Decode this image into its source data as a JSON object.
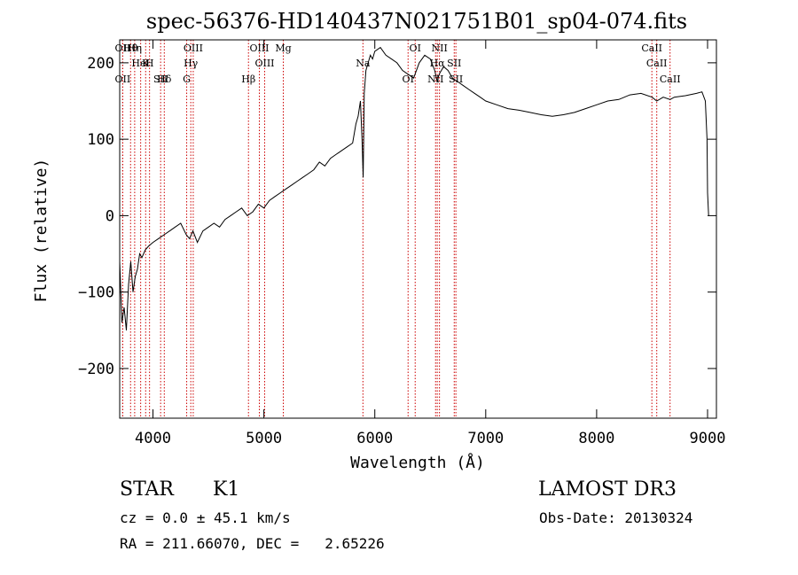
{
  "chart_data": {
    "type": "line",
    "title": "spec-56376-HD140437N021751B01_sp04-074.fits",
    "xlabel": "Wavelength (Å)",
    "ylabel": "Flux (relative)",
    "xlim": [
      3700,
      9080
    ],
    "ylim": [
      -265,
      230
    ],
    "x_ticks": [
      4000,
      5000,
      6000,
      7000,
      8000,
      9000
    ],
    "y_ticks": [
      -200,
      -100,
      0,
      100,
      200
    ],
    "series": [
      {
        "name": "flux",
        "x": [
          3700,
          3720,
          3740,
          3760,
          3780,
          3800,
          3820,
          3840,
          3860,
          3880,
          3900,
          3930,
          3960,
          4000,
          4050,
          4100,
          4150,
          4200,
          4250,
          4300,
          4330,
          4360,
          4400,
          4450,
          4500,
          4550,
          4600,
          4650,
          4700,
          4750,
          4800,
          4850,
          4900,
          4950,
          5000,
          5050,
          5100,
          5150,
          5200,
          5250,
          5300,
          5350,
          5400,
          5450,
          5500,
          5550,
          5600,
          5650,
          5700,
          5750,
          5800,
          5830,
          5850,
          5870,
          5885,
          5895,
          5905,
          5920,
          5940,
          5960,
          5980,
          6000,
          6050,
          6100,
          6150,
          6200,
          6250,
          6300,
          6350,
          6400,
          6450,
          6500,
          6540,
          6563,
          6580,
          6620,
          6660,
          6700,
          6750,
          6800,
          6850,
          6900,
          6950,
          7000,
          7100,
          7200,
          7300,
          7400,
          7500,
          7600,
          7700,
          7800,
          7900,
          8000,
          8100,
          8200,
          8300,
          8400,
          8500,
          8542,
          8600,
          8662,
          8700,
          8800,
          8900,
          8950,
          8980,
          8995,
          9000,
          9010
        ],
        "y": [
          -60,
          -140,
          -120,
          -150,
          -90,
          -60,
          -100,
          -80,
          -70,
          -50,
          -55,
          -45,
          -40,
          -35,
          -30,
          -25,
          -20,
          -15,
          -10,
          -25,
          -30,
          -20,
          -35,
          -20,
          -15,
          -10,
          -15,
          -5,
          0,
          5,
          10,
          0,
          5,
          15,
          10,
          20,
          25,
          30,
          35,
          40,
          45,
          50,
          55,
          60,
          70,
          65,
          75,
          80,
          85,
          90,
          95,
          120,
          130,
          150,
          100,
          50,
          160,
          190,
          200,
          210,
          205,
          215,
          220,
          210,
          205,
          200,
          190,
          185,
          180,
          200,
          210,
          205,
          190,
          175,
          185,
          195,
          190,
          180,
          175,
          170,
          165,
          160,
          155,
          150,
          145,
          140,
          138,
          135,
          132,
          130,
          132,
          135,
          140,
          145,
          150,
          152,
          158,
          160,
          155,
          150,
          155,
          152,
          155,
          157,
          160,
          162,
          150,
          100,
          30,
          0
        ]
      }
    ],
    "line_markers": [
      {
        "label": "Hθ",
        "x": 3798
      },
      {
        "label": "K",
        "x": 3934
      },
      {
        "label": "Hδ",
        "x": 4102
      },
      {
        "label": "OII",
        "x": 3727
      },
      {
        "label": "HeI",
        "x": 3889
      },
      {
        "label": "SII",
        "x": 4069
      },
      {
        "label": "OIII",
        "x": 4363
      },
      {
        "label": "Hγ",
        "x": 4341
      },
      {
        "label": "OII",
        "x": 3727
      },
      {
        "label": "Hη",
        "x": 3835
      },
      {
        "label": "H",
        "x": 3969
      },
      {
        "label": "G",
        "x": 4304
      },
      {
        "label": "OIII",
        "x": 4959
      },
      {
        "label": "OIII",
        "x": 5007
      },
      {
        "label": "Hβ",
        "x": 4861
      },
      {
        "label": "Mg",
        "x": 5175
      },
      {
        "label": "Na",
        "x": 5893
      },
      {
        "label": "OI",
        "x": 6300
      },
      {
        "label": "OI",
        "x": 6364
      },
      {
        "label": "Hα",
        "x": 6563
      },
      {
        "label": "NII",
        "x": 6548
      },
      {
        "label": "NII",
        "x": 6583
      },
      {
        "label": "SII",
        "x": 6716
      },
      {
        "label": "SII",
        "x": 6731
      },
      {
        "label": "CaII",
        "x": 8498
      },
      {
        "label": "CaII",
        "x": 8542
      },
      {
        "label": "CaII",
        "x": 8662
      }
    ],
    "marker_color": "#cc0000"
  },
  "info": {
    "object_class": "STAR",
    "subclass": "K1",
    "survey": "LAMOST DR3",
    "cz": "cz = 0.0 ± 45.1 km/s",
    "obs_date": "Obs-Date: 20130324",
    "radec": "RA = 211.66070, DEC =   2.65226"
  }
}
